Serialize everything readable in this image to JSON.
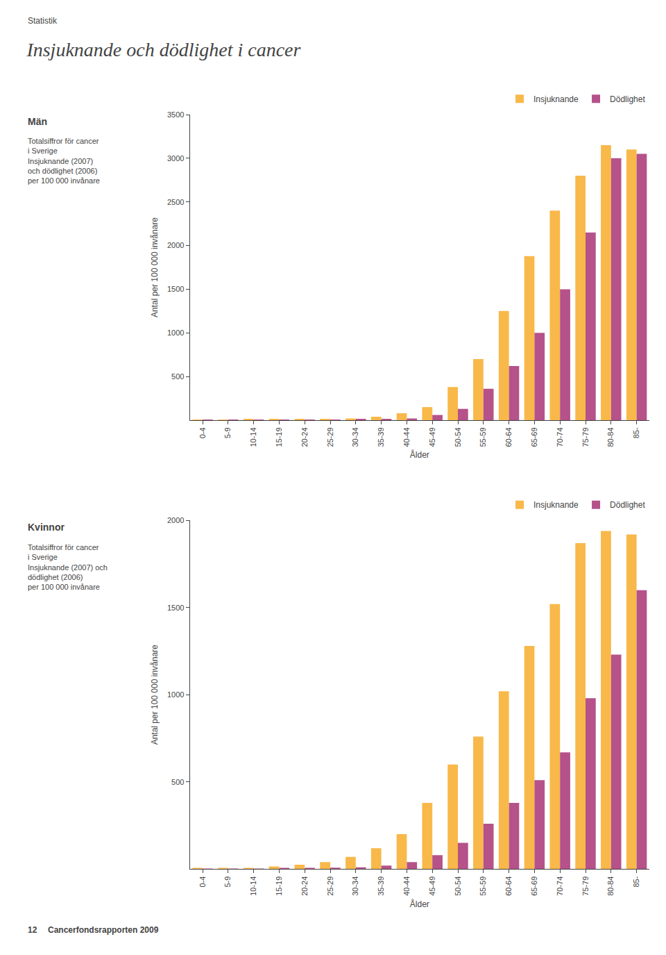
{
  "title": "Insjuknande och dödlighet i cancer",
  "annotations": [
    "Statistik",
    "12",
    "Cancerfondsrapporten 2009"
  ],
  "chart_data": [
    {
      "type": "bar",
      "title": "Män",
      "subtitle": [
        "Totalsiffror för cancer",
        "i Sverige",
        "Insjuknande (2007)",
        "och dödlighet (2006)",
        "per 100 000 invånare"
      ],
      "categories": [
        "0-4",
        "5-9",
        "10-14",
        "15-19",
        "20-24",
        "25-29",
        "30-34",
        "35-39",
        "40-44",
        "45-49",
        "50-54",
        "55-59",
        "60-64",
        "65-69",
        "70-74",
        "75-79",
        "80-84",
        "85-"
      ],
      "series": [
        {
          "name": "Insjuknande",
          "color": "#f9b84a",
          "values": [
            5,
            5,
            8,
            10,
            10,
            15,
            20,
            40,
            80,
            150,
            380,
            700,
            1250,
            1880,
            2400,
            2800,
            3150,
            3100
          ]
        },
        {
          "name": "Dödlighet",
          "color": "#b5528a",
          "values": [
            3,
            3,
            4,
            5,
            5,
            5,
            8,
            10,
            20,
            60,
            130,
            360,
            620,
            1000,
            1500,
            2150,
            3000,
            3050
          ]
        }
      ],
      "xlabel": "Ålder",
      "ylabel": "Antal per 100 000 invånare",
      "ylim": [
        0,
        3500
      ],
      "yticks": [
        500,
        1000,
        1500,
        2000,
        2500,
        3000,
        3500
      ],
      "grid": false,
      "legend": "top right"
    },
    {
      "type": "bar",
      "title": "Kvinnor",
      "subtitle": [
        "Totalsiffror för cancer",
        "i Sverige",
        "Insjuknande (2007) och",
        "dödlighet (2006)",
        "per 100 000 invånare"
      ],
      "categories": [
        "0-4",
        "5-9",
        "10-14",
        "15-19",
        "20-24",
        "25-29",
        "30-34",
        "35-39",
        "40-44",
        "45-49",
        "50-54",
        "55-59",
        "60-64",
        "65-69",
        "70-74",
        "75-79",
        "80-84",
        "85-"
      ],
      "series": [
        {
          "name": "Insjuknande",
          "color": "#f9b84a",
          "values": [
            4,
            4,
            6,
            15,
            25,
            40,
            70,
            120,
            200,
            380,
            600,
            760,
            1020,
            1280,
            1520,
            1870,
            1940,
            1920
          ]
        },
        {
          "name": "Dödlighet",
          "color": "#b5528a",
          "values": [
            2,
            2,
            3,
            5,
            5,
            8,
            10,
            20,
            40,
            80,
            150,
            260,
            380,
            510,
            670,
            980,
            1230,
            1600
          ]
        }
      ],
      "xlabel": "Ålder",
      "ylabel": "Antal per 100 000 invånare",
      "ylim": [
        0,
        2000
      ],
      "yticks": [
        500,
        1000,
        1500,
        2000
      ],
      "grid": false,
      "legend": "top right"
    }
  ]
}
